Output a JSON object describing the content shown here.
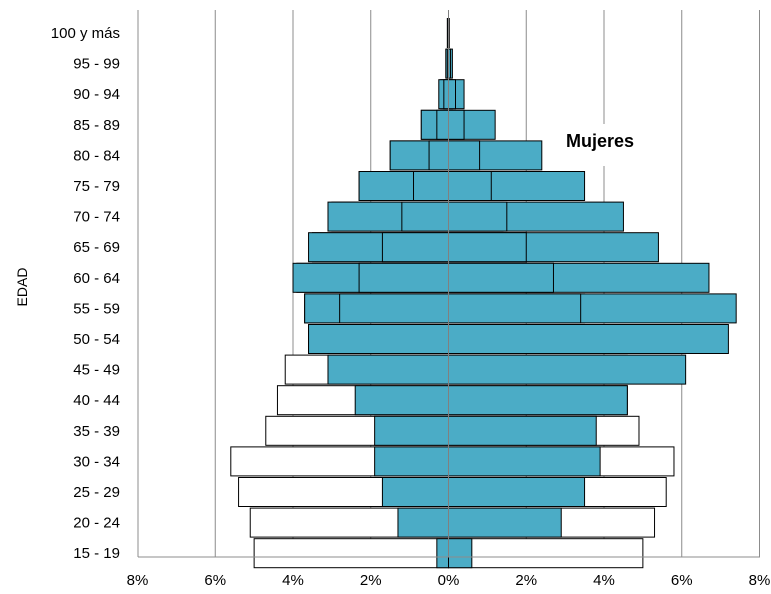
{
  "chart_data": {
    "type": "bar",
    "orientation": "horizontal-pyramid",
    "title": "",
    "xlabel": "",
    "ylabel": "EDAD",
    "xlim": [
      -8,
      8
    ],
    "x_ticks": [
      "8%",
      "6%",
      "4%",
      "2%",
      "0%",
      "2%",
      "4%",
      "6%",
      "8%"
    ],
    "grid": "vertical",
    "categories": [
      "15 - 19",
      "20 - 24",
      "25 - 29",
      "30 - 34",
      "35 - 39",
      "40 - 44",
      "45 - 49",
      "50 - 54",
      "55 - 59",
      "60 - 64",
      "65 - 69",
      "70 - 74",
      "75 - 79",
      "80 - 84",
      "85 - 89",
      "90 - 94",
      "95 - 99",
      "100 y más"
    ],
    "series": [
      {
        "fill": "#ffffff",
        "stroke": "#000000",
        "left": [
          5.0,
          5.1,
          5.4,
          5.6,
          4.7,
          4.4,
          4.2,
          3.6,
          3.7,
          3.9,
          3.5,
          3.0,
          2.3,
          1.5,
          0.7,
          0.2,
          0.05,
          0.02
        ],
        "right": [
          5.0,
          5.3,
          5.6,
          5.8,
          4.9,
          4.6,
          4.6,
          4.3,
          3.5,
          2.7,
          2.0,
          1.4,
          1.1,
          0.8,
          0.4,
          0.1,
          0.03,
          0.01
        ]
      },
      {
        "fill": "#4bacc6",
        "stroke": "#000000",
        "left": [
          0.3,
          1.3,
          1.7,
          1.9,
          1.9,
          2.4,
          3.1,
          3.6,
          3.7,
          4.0,
          3.6,
          3.1,
          2.3,
          1.5,
          0.7,
          0.25,
          0.07,
          0.03
        ],
        "right": [
          0.6,
          2.9,
          3.5,
          3.9,
          3.8,
          4.6,
          6.1,
          7.2,
          7.4,
          6.7,
          5.4,
          4.5,
          3.5,
          2.4,
          1.2,
          0.4,
          0.1,
          0.02
        ]
      },
      {
        "fill": "#4bacc6",
        "stroke": "#000000",
        "left": [
          0.0,
          0.0,
          0.0,
          0.0,
          0.0,
          0.0,
          0.0,
          0.0,
          2.8,
          2.3,
          1.7,
          1.2,
          0.9,
          0.5,
          0.3,
          0.12,
          0.03,
          0.01
        ],
        "right": [
          0.0,
          0.0,
          0.0,
          0.0,
          0.0,
          0.0,
          0.0,
          0.0,
          3.4,
          2.7,
          2.0,
          1.5,
          1.1,
          0.8,
          0.4,
          0.18,
          0.05,
          0.01
        ]
      }
    ],
    "annotations": [
      {
        "text": "Mujeres"
      }
    ]
  }
}
